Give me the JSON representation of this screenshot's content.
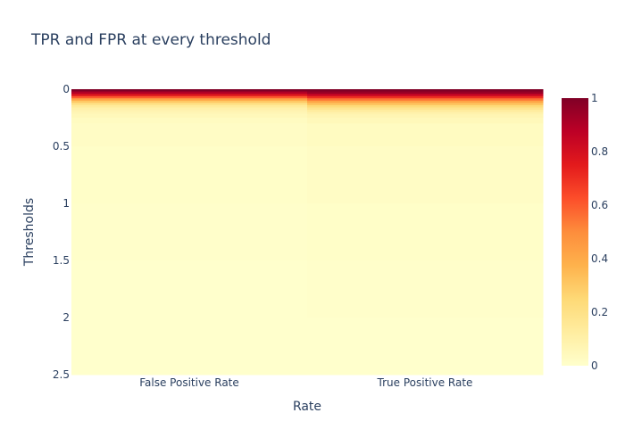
{
  "chart_data": {
    "type": "heatmap",
    "title": "TPR and FPR at every threshold",
    "xlabel": "Rate",
    "ylabel": "Thresholds",
    "categories": [
      "False Positive Rate",
      "True Positive Rate"
    ],
    "y_range": [
      0,
      2.5
    ],
    "y_ticks": [
      "0",
      "0.5",
      "1",
      "1.5",
      "2",
      "2.5"
    ],
    "colorbar": {
      "range": [
        0,
        1
      ],
      "ticks": [
        "0",
        "0.2",
        "0.4",
        "0.6",
        "0.8",
        "1"
      ]
    },
    "colorscale": [
      "#ffffcc",
      "#ffeda0",
      "#fed976",
      "#feb24c",
      "#fd8d3c",
      "#fc4e2a",
      "#e31a1c",
      "#bd0026",
      "#800026"
    ],
    "rows": [
      {
        "threshold": 0.0,
        "values": [
          1.0,
          1.0
        ]
      },
      {
        "threshold": 0.02,
        "values": [
          0.9,
          0.95
        ]
      },
      {
        "threshold": 0.04,
        "values": [
          0.78,
          0.85
        ]
      },
      {
        "threshold": 0.06,
        "values": [
          0.6,
          0.7
        ]
      },
      {
        "threshold": 0.08,
        "values": [
          0.42,
          0.55
        ]
      },
      {
        "threshold": 0.1,
        "values": [
          0.3,
          0.42
        ]
      },
      {
        "threshold": 0.12,
        "values": [
          0.2,
          0.32
        ]
      },
      {
        "threshold": 0.14,
        "values": [
          0.14,
          0.24
        ]
      },
      {
        "threshold": 0.16,
        "values": [
          0.1,
          0.18
        ]
      },
      {
        "threshold": 0.18,
        "values": [
          0.08,
          0.13
        ]
      },
      {
        "threshold": 0.2,
        "values": [
          0.06,
          0.09
        ]
      },
      {
        "threshold": 0.22,
        "values": [
          0.05,
          0.07
        ]
      },
      {
        "threshold": 0.25,
        "values": [
          0.03,
          0.05
        ]
      },
      {
        "threshold": 0.3,
        "values": [
          0.02,
          0.03
        ]
      },
      {
        "threshold": 0.5,
        "values": [
          0.01,
          0.02
        ]
      },
      {
        "threshold": 1.0,
        "values": [
          0.005,
          0.01
        ]
      },
      {
        "threshold": 1.5,
        "values": [
          0.0,
          0.005
        ]
      },
      {
        "threshold": 2.0,
        "values": [
          0.0,
          0.0
        ]
      }
    ]
  }
}
